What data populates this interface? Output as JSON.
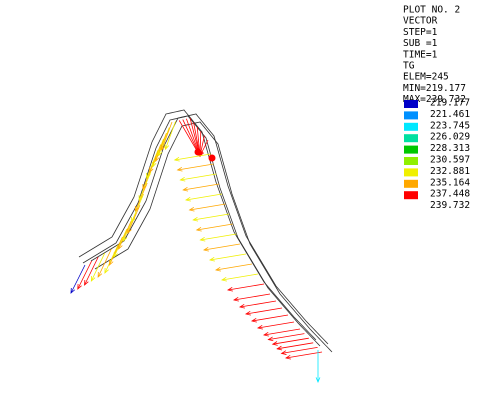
{
  "info": [
    "PLOT NO.   2",
    "VECTOR",
    "STEP=1",
    "SUB =1",
    "TIME=1",
    "TG",
    "ELEM=245",
    "MIN=219.177",
    "MAX=239.732"
  ],
  "legend": {
    "levels": [
      219.177,
      221.461,
      223.745,
      226.029,
      228.313,
      230.597,
      232.881,
      235.164,
      237.448,
      239.732
    ],
    "colors": [
      "#0000c8",
      "#0090ff",
      "#00e8ff",
      "#00e0a0",
      "#00c800",
      "#90f000",
      "#f0f000",
      "#ffa800",
      "#ff0000"
    ]
  }
}
